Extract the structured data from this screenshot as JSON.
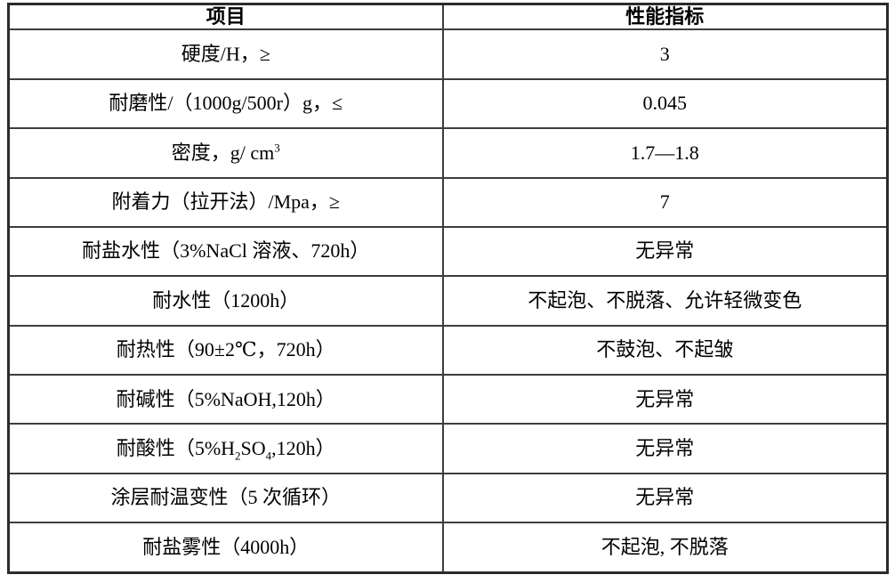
{
  "table": {
    "columns": [
      {
        "label": "项目"
      },
      {
        "label": "性能指标"
      }
    ],
    "rows": [
      {
        "item": "硬度/H，≥",
        "value": "3"
      },
      {
        "item": "耐磨性/（1000g/500r）g，≤",
        "value": "0.045"
      },
      {
        "item_parts": {
          "pre": "密度，g/ cm",
          "sup": "3"
        },
        "value": "1.7—1.8"
      },
      {
        "item": "附着力（拉开法）/Mpa，≥",
        "value": "7"
      },
      {
        "item": "耐盐水性（3%NaCl 溶液、720h）",
        "value": "无异常"
      },
      {
        "item": "耐水性（1200h）",
        "value": "不起泡、不脱落、允许轻微变色"
      },
      {
        "item": "耐热性（90±2℃，720h）",
        "value": "不鼓泡、不起皱"
      },
      {
        "item": "耐碱性（5%NaOH,120h）",
        "value": "无异常"
      },
      {
        "item_parts": {
          "p1": "耐酸性（5%H",
          "s1": "2",
          "p2": "SO",
          "s2": "4",
          "p3": ",120h）"
        },
        "value": "无异常"
      },
      {
        "item": "涂层耐温变性（5 次循环）",
        "value": "无异常"
      },
      {
        "item": "耐盐雾性（4000h）",
        "value": "不起泡, 不脱落"
      }
    ]
  }
}
